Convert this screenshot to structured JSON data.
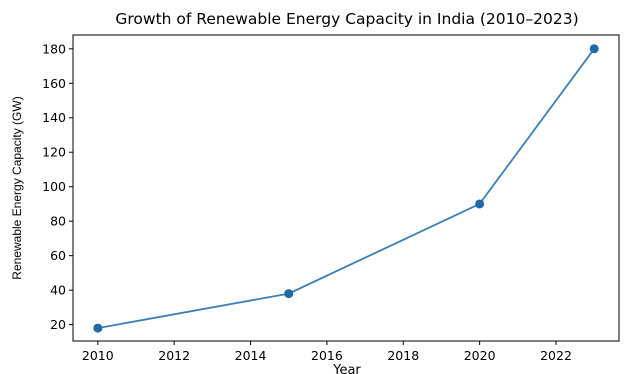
{
  "chart_data": {
    "type": "line",
    "title": "Growth of Renewable Energy Capacity in India (2010–2023)",
    "xlabel": "Year",
    "ylabel": "Renewable Energy Capacity (GW)",
    "x": [
      2010,
      2015,
      2020,
      2023
    ],
    "series": [
      {
        "values": [
          18,
          38,
          90,
          180
        ]
      }
    ],
    "xlim": [
      2009.35,
      2023.65
    ],
    "ylim": [
      10.5,
      188
    ],
    "xticks": [
      2010,
      2012,
      2014,
      2016,
      2018,
      2020,
      2022
    ],
    "yticks": [
      20,
      40,
      60,
      80,
      100,
      120,
      140,
      160,
      180
    ],
    "grid": false,
    "line_color": "#3b7fb6",
    "marker_color": "#1f6aa8"
  }
}
